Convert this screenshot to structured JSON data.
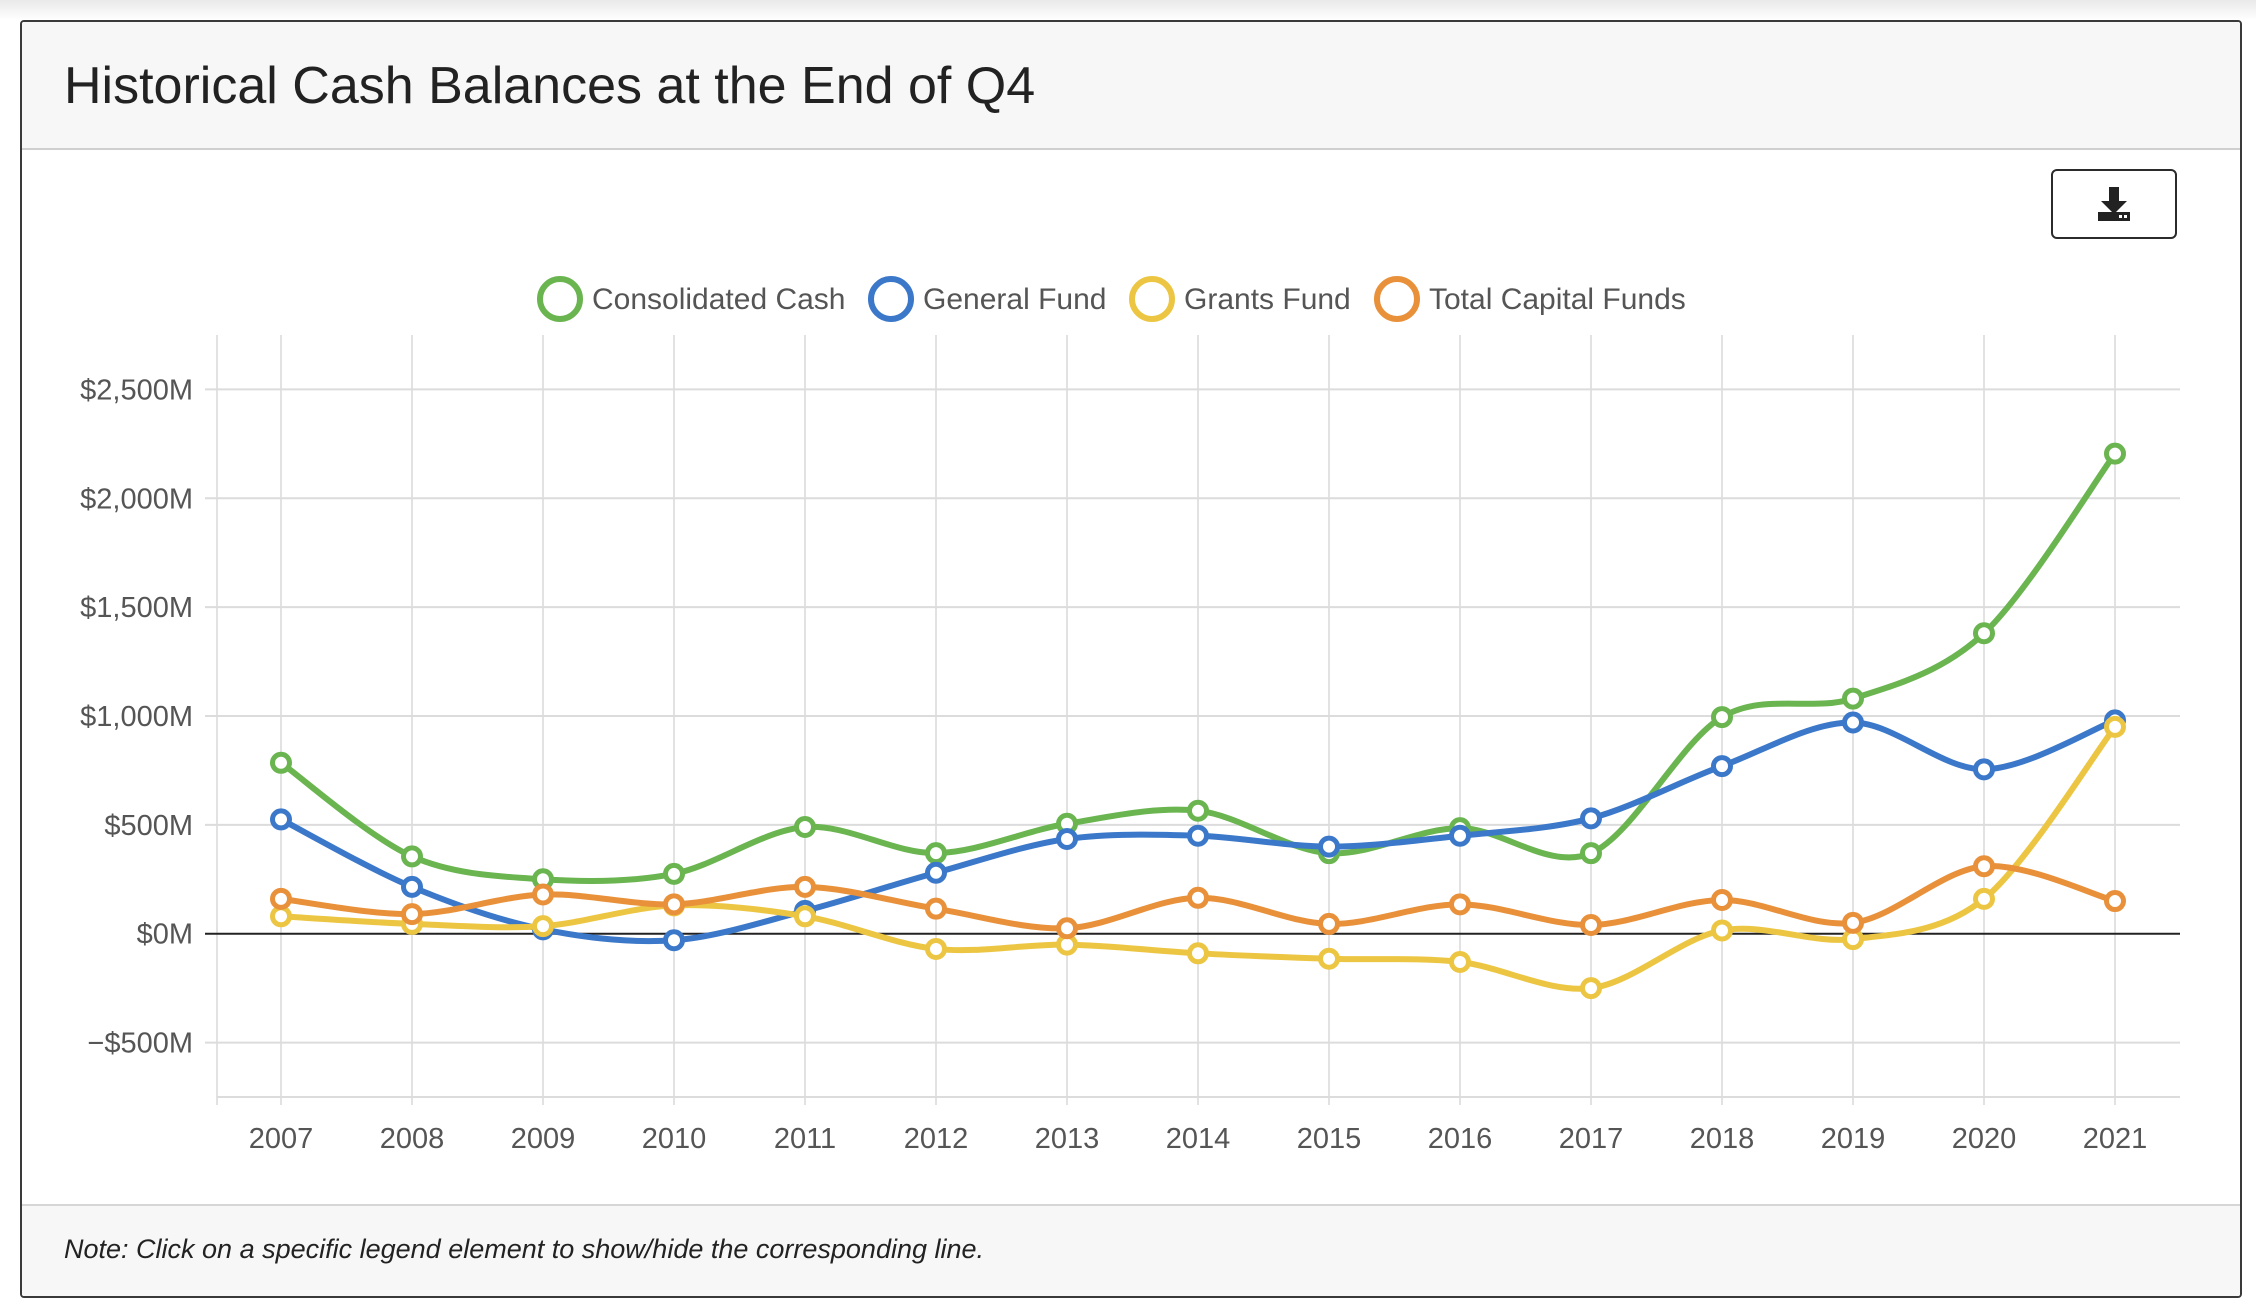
{
  "header": {
    "title": "Historical Cash Balances at the End of Q4"
  },
  "toolbar": {
    "download_icon": "download-icon"
  },
  "footer": {
    "note": "Note: Click on a specific legend element to show/hide the corresponding line."
  },
  "chart_data": {
    "type": "line",
    "title": "Historical Cash Balances at the End of Q4",
    "xlabel": "",
    "ylabel": "",
    "x": [
      "2007",
      "2008",
      "2009",
      "2010",
      "2011",
      "2012",
      "2013",
      "2014",
      "2015",
      "2016",
      "2017",
      "2018",
      "2019",
      "2020",
      "2021"
    ],
    "ylim": [
      -750,
      2750
    ],
    "yticks": [
      -500,
      0,
      500,
      1000,
      1500,
      2000,
      2500
    ],
    "ytick_labels": [
      "−$500M",
      "$0M",
      "$500M",
      "$1,000M",
      "$1,500M",
      "$2,000M",
      "$2,500M"
    ],
    "grid": true,
    "legend_position": "top-center",
    "series": [
      {
        "name": "Consolidated Cash",
        "color": "#6ab550",
        "values": [
          785,
          355,
          250,
          275,
          490,
          370,
          505,
          565,
          370,
          485,
          370,
          995,
          1080,
          1380,
          2205
        ]
      },
      {
        "name": "General Fund",
        "color": "#3b78c9",
        "values": [
          525,
          215,
          20,
          -30,
          105,
          280,
          435,
          450,
          400,
          450,
          530,
          770,
          970,
          755,
          980
        ]
      },
      {
        "name": "Grants Fund",
        "color": "#ecc643",
        "values": [
          80,
          45,
          35,
          130,
          80,
          -70,
          -50,
          -90,
          -115,
          -130,
          -250,
          15,
          -25,
          160,
          950
        ]
      },
      {
        "name": "Total Capital Funds",
        "color": "#e8913a",
        "values": [
          160,
          90,
          180,
          135,
          215,
          115,
          25,
          165,
          45,
          135,
          40,
          155,
          50,
          310,
          150
        ]
      }
    ]
  }
}
